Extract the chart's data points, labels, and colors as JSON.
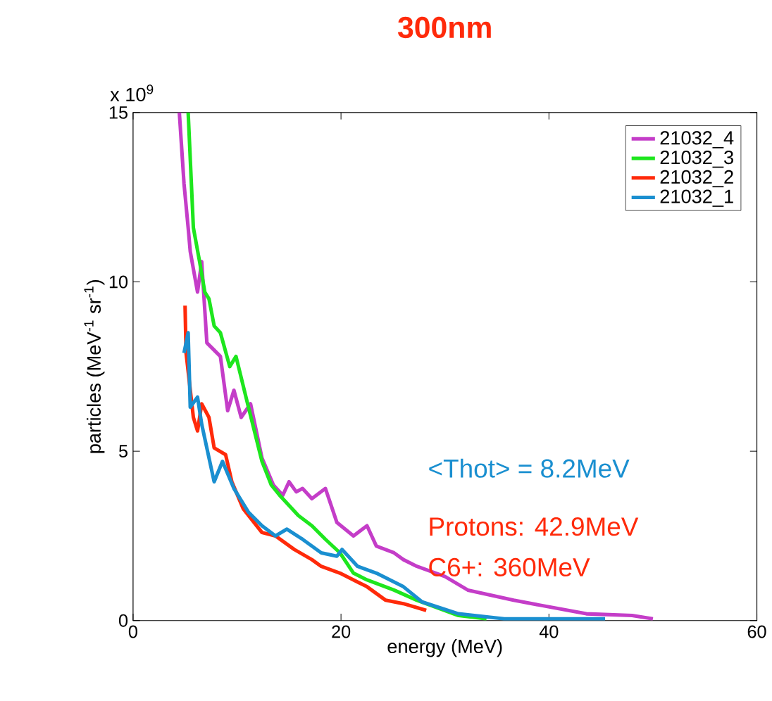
{
  "chart_data": {
    "type": "line",
    "title": "300nm",
    "xlabel": "energy (MeV)",
    "ylabel": "particles (MeV$^{-1}$ sr$^{-1}$)",
    "xlim": [
      0,
      60
    ],
    "ylim": [
      0,
      15
    ],
    "xticks": [
      0,
      20,
      40,
      60
    ],
    "yticks": [
      0,
      5,
      10,
      15
    ],
    "legend": "top right",
    "line_style": "solid",
    "annotations": [
      "x 10$^{9}$",
      "<Thot> = 8.2MeV",
      "Protons: 42.9MeV",
      "C6+: 360MeV"
    ],
    "series": [
      {
        "name": "21032_4",
        "color": "#c43dc8",
        "x": [
          4.45,
          4.9,
          5.3,
          5.5,
          6.2,
          6.6,
          7.1,
          8.4,
          9.1,
          9.7,
          10.4,
          11.3,
          12.4,
          13.5,
          14.4,
          15.0,
          15.7,
          16.3,
          17.2,
          18.5,
          19.6,
          21.2,
          22.5,
          23.4,
          25.1,
          26.0,
          27.3,
          30.0,
          32.2,
          36.6,
          40.1,
          43.6,
          48.0,
          50.0
        ],
        "values": [
          15,
          12.9,
          11.6,
          10.9,
          9.7,
          10.6,
          8.2,
          7.8,
          6.2,
          6.8,
          6.0,
          6.4,
          4.8,
          4.0,
          3.7,
          4.1,
          3.8,
          3.9,
          3.6,
          3.9,
          2.9,
          2.5,
          2.8,
          2.2,
          2.0,
          1.8,
          1.6,
          1.3,
          0.9,
          0.6,
          0.4,
          0.2,
          0.15,
          0.05
        ]
      },
      {
        "name": "21032_3",
        "color": "#1ee61e",
        "x": [
          5.3,
          5.8,
          6.4,
          6.9,
          7.3,
          7.8,
          8.4,
          9.3,
          9.9,
          11.1,
          12.4,
          13.3,
          14.1,
          15.9,
          17.2,
          18.5,
          19.9,
          21.2,
          22.5,
          25.1,
          27.3,
          31.3,
          34.0
        ],
        "values": [
          15,
          11.6,
          10.6,
          9.7,
          9.5,
          8.7,
          8.5,
          7.5,
          7.8,
          6.3,
          4.7,
          4.0,
          3.7,
          3.1,
          2.8,
          2.4,
          2.0,
          1.4,
          1.2,
          0.9,
          0.6,
          0.15,
          0.05
        ]
      },
      {
        "name": "21032_2",
        "color": "#ff2a0a",
        "x": [
          5.0,
          5.1,
          5.8,
          6.2,
          6.6,
          7.3,
          7.8,
          8.9,
          9.5,
          10.6,
          12.4,
          13.7,
          15.5,
          17.2,
          18.1,
          19.9,
          22.5,
          24.3,
          26.0,
          28.2
        ],
        "values": [
          9.3,
          7.9,
          6.0,
          5.6,
          6.4,
          6.0,
          5.1,
          4.9,
          4.1,
          3.3,
          2.6,
          2.5,
          2.1,
          1.8,
          1.6,
          1.4,
          1.0,
          0.6,
          0.5,
          0.3
        ]
      },
      {
        "name": "21032_1",
        "color": "#1a8fd0",
        "x": [
          4.9,
          5.3,
          5.5,
          6.2,
          6.6,
          7.8,
          8.6,
          9.7,
          11.1,
          12.4,
          13.7,
          14.8,
          16.3,
          18.1,
          19.6,
          20.1,
          21.6,
          23.4,
          26.0,
          27.8,
          31.3,
          35.7,
          45.4
        ],
        "values": [
          7.9,
          8.5,
          6.3,
          6.6,
          5.8,
          4.1,
          4.7,
          3.9,
          3.2,
          2.8,
          2.5,
          2.7,
          2.4,
          2.0,
          1.9,
          2.1,
          1.6,
          1.4,
          1.0,
          0.55,
          0.2,
          0.05,
          0.05
        ]
      }
    ]
  }
}
